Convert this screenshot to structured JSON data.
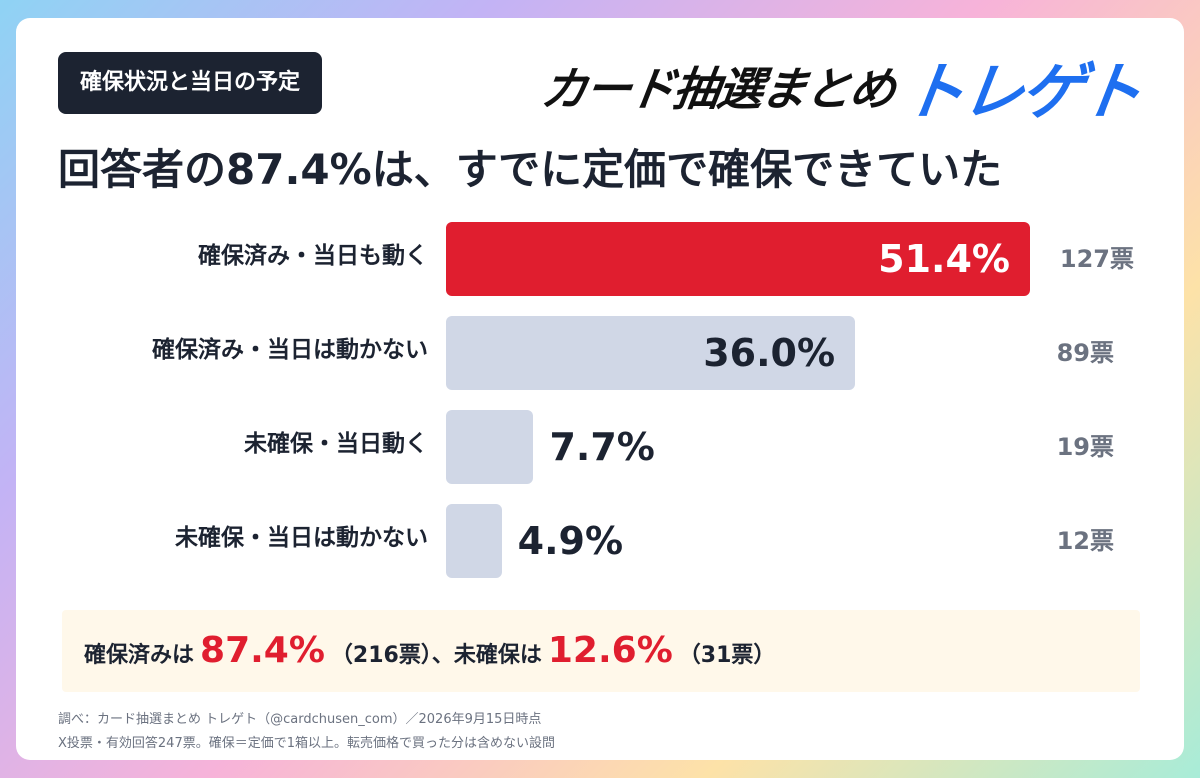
{
  "tag_label": "確保状況と当日の予定",
  "logo": {
    "main": "カード抽選まとめ",
    "brand": "トレゲト"
  },
  "headline": "回答者の87.4%は、すでに定価で確保できていた",
  "chart_data": {
    "type": "bar",
    "orientation": "horizontal",
    "categories": [
      "確保済み・当日も動く",
      "確保済み・当日は動かない",
      "未確保・当日動く",
      "未確保・当日は動かない"
    ],
    "values": [
      51.4,
      36.0,
      7.7,
      4.9
    ],
    "value_labels": [
      "51.4%",
      "36.0%",
      "7.7%",
      "4.9%"
    ],
    "vote_labels": [
      "127票",
      "89票",
      "19票",
      "12票"
    ],
    "votes": [
      127,
      89,
      19,
      12
    ],
    "highlight_index": 0,
    "xlim": [
      0,
      51.4
    ],
    "colors": {
      "highlight": "#e01e2f",
      "default": "#d0d7e6"
    }
  },
  "summary": {
    "secured_label": "確保済みは",
    "secured_pct": "87.4%",
    "secured_votes": "（216票）、",
    "unsecured_label": "未確保は",
    "unsecured_pct": "12.6%",
    "unsecured_votes": "（31票）"
  },
  "footnotes": [
    "調べ：カード抽選まとめ トレゲト（@cardchusen_com）／2026年9月15日時点",
    "X投票・有効回答247票。確保＝定価で1箱以上。転売価格で買った分は含めない設問"
  ]
}
